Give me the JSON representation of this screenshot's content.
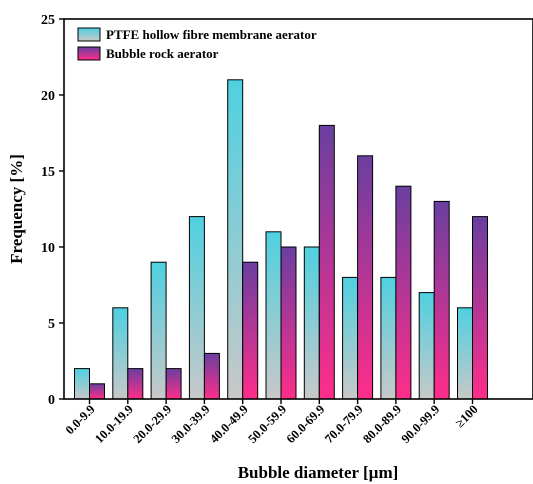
{
  "chart_data": {
    "type": "bar",
    "xlabel": "Bubble diameter [µm]",
    "ylabel": "Frequency [%]",
    "ylim": [
      0,
      25
    ],
    "yticks": [
      0,
      5,
      10,
      15,
      20,
      25
    ],
    "categories": [
      "0.0-9.9",
      "10.0-19.9",
      "20.0-29.9",
      "30.0-39.9",
      "40.0-49.9",
      "50.0-59.9",
      "60.0-69.9",
      "70.0-79.9",
      "80.0-89.9",
      "90.0-99.9",
      "≥100"
    ],
    "series": [
      {
        "name": "PTFE hollow fibre membrane aerator",
        "values": [
          2,
          6,
          9,
          12,
          21,
          11,
          10,
          8,
          8,
          7,
          6
        ],
        "color_top": "#4fd0e0",
        "color_bottom": "#c8c8c8"
      },
      {
        "name": "Bubble rock aerator",
        "values": [
          1,
          2,
          2,
          3,
          9,
          10,
          18,
          16,
          14,
          13,
          12
        ],
        "color_top": "#6a3fa0",
        "color_bottom": "#ff2d8a"
      }
    ],
    "legend_position": "top-left",
    "grid": false
  }
}
